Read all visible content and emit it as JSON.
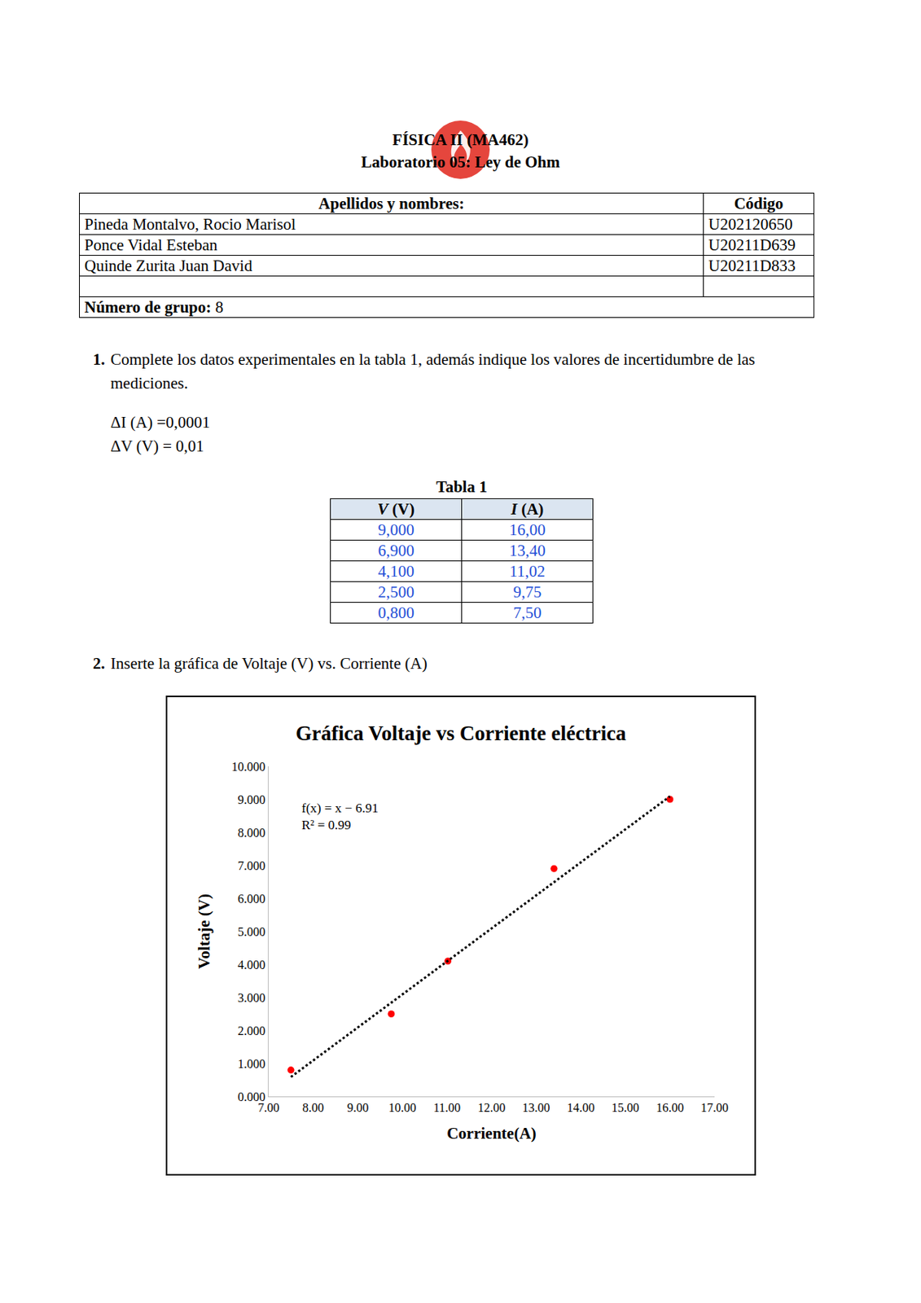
{
  "header": {
    "title": "FÍSICA II (MA462)",
    "subtitle": "Laboratorio 05: Ley de Ohm"
  },
  "members_table": {
    "columns": [
      "Apellidos y nombres:",
      "Código"
    ],
    "rows": [
      [
        "Pineda Montalvo, Rocio Marisol",
        "U202120650"
      ],
      [
        "Ponce Vidal Esteban",
        "U20211D639"
      ],
      [
        "Quinde Zurita Juan David",
        "U20211D833"
      ],
      [
        null,
        null
      ]
    ],
    "group": {
      "label": "Número de grupo:",
      "value": "8"
    }
  },
  "question_1": {
    "number": "1.",
    "text": "Complete los datos experimentales en la tabla 1, además indique los valores de incertidumbre de las mediciones."
  },
  "uncertainties": [
    "ΔI (A) =0,0001",
    "ΔV (V) = 0,01"
  ],
  "data_table": {
    "caption": "Tabla 1",
    "columns": [
      {
        "symbol": "V",
        "unit": "(V)"
      },
      {
        "symbol": "I",
        "unit": "(A)"
      }
    ],
    "rows": [
      [
        "9,000",
        "16,00"
      ],
      [
        "6,900",
        "13,40"
      ],
      [
        "4,100",
        "11,02"
      ],
      [
        "2,500",
        "9,75"
      ],
      [
        "0,800",
        "7,50"
      ]
    ]
  },
  "question_2": {
    "number": "2.",
    "text": "Inserte la gráfica de Voltaje (V) vs. Corriente (A)"
  },
  "chart_data": {
    "type": "scatter",
    "title": "Gráfica Voltaje vs Corriente eléctrica",
    "x_label": "Corriente(A)",
    "y_label": "Voltaje (V)",
    "xlim": [
      7,
      17
    ],
    "xticks": [
      {
        "value": 7,
        "label": "7.00"
      },
      {
        "value": 8,
        "label": "8.00"
      },
      {
        "value": 9,
        "label": "9.00"
      },
      {
        "value": 10,
        "label": "10.00"
      },
      {
        "value": 11,
        "label": "11.00"
      },
      {
        "value": 12,
        "label": "12.00"
      },
      {
        "value": 13,
        "label": "13.00"
      },
      {
        "value": 14,
        "label": "14.00"
      },
      {
        "value": 15,
        "label": "15.00"
      },
      {
        "value": 16,
        "label": "16.00"
      },
      {
        "value": 17,
        "label": "17.00"
      }
    ],
    "ylim": [
      0,
      10
    ],
    "yticks": [
      {
        "value": 0,
        "label": "0.000"
      },
      {
        "value": 1,
        "label": "1.000"
      },
      {
        "value": 2,
        "label": "2.000"
      },
      {
        "value": 3,
        "label": "3.000"
      },
      {
        "value": 4,
        "label": "4.000"
      },
      {
        "value": 5,
        "label": "5.000"
      },
      {
        "value": 6,
        "label": "6.000"
      },
      {
        "value": 7,
        "label": "7.000"
      },
      {
        "value": 8,
        "label": "8.000"
      },
      {
        "value": 9,
        "label": "9.000"
      },
      {
        "value": 10,
        "label": "10.000"
      }
    ],
    "grid": false,
    "series": [
      {
        "type": "scatter",
        "marker": "circle",
        "color": "#ff0000",
        "x": [
          16.0,
          13.4,
          11.02,
          9.75,
          7.5
        ],
        "values": [
          9.0,
          6.9,
          4.1,
          2.5,
          0.8
        ]
      },
      {
        "type": "line",
        "line_style": "dot",
        "color": "#000000",
        "x": [
          7.5,
          16.0
        ],
        "values": [
          0.59,
          9.09
        ]
      }
    ],
    "annotations": [
      "f(x) = x − 6.91",
      "R² = 0.99"
    ]
  }
}
